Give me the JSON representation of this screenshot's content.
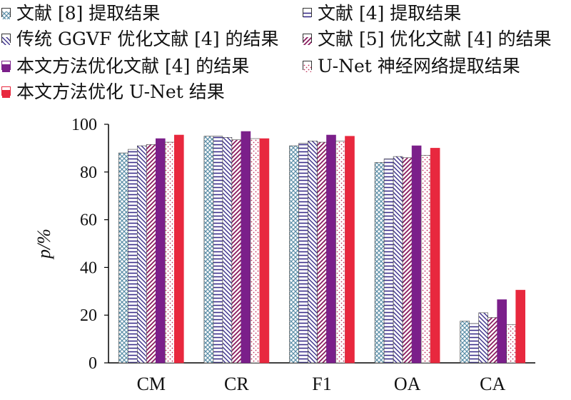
{
  "chart_data": {
    "type": "bar",
    "categories": [
      "CM",
      "CR",
      "F1",
      "OA",
      "CA"
    ],
    "ylabel": "p/%",
    "ylim": [
      0,
      100
    ],
    "yticks": [
      0,
      20,
      40,
      60,
      80,
      100
    ],
    "legend_position": "top",
    "series": [
      {
        "name": "文献 [8] 提取结果",
        "values": [
          88,
          95,
          91,
          84,
          17.5
        ],
        "pattern": "crosshatch",
        "color": "#5b8fa8"
      },
      {
        "name": "文献 [4] 提取结果",
        "values": [
          89.5,
          95,
          92,
          85.5,
          16.5
        ],
        "pattern": "hlines",
        "color": "#3a2e8a"
      },
      {
        "name": "传统 GGVF 优化文献 [4] 的结果",
        "values": [
          91,
          94.5,
          93,
          86.5,
          21
        ],
        "pattern": "diag-back",
        "color": "#3a2e8a"
      },
      {
        "name": "文献 [5] 优化文献 [4] 的结果",
        "values": [
          91.5,
          93.5,
          92.5,
          86,
          19
        ],
        "pattern": "diag-fwd",
        "color": "#8a1a5e"
      },
      {
        "name": "本文方法优化文献 [4] 的结果",
        "values": [
          94,
          97,
          95.5,
          91,
          26.5
        ],
        "pattern": "solid",
        "color": "#7b1f8a"
      },
      {
        "name": "U-Net 神经网络提取结果",
        "values": [
          92.5,
          94,
          93,
          87,
          16
        ],
        "pattern": "dots",
        "color": "#c0305a"
      },
      {
        "name": "本文方法优化 U-Net 结果",
        "values": [
          95.5,
          94,
          95,
          90,
          30.5
        ],
        "pattern": "solid",
        "color": "#e8283e"
      }
    ]
  }
}
